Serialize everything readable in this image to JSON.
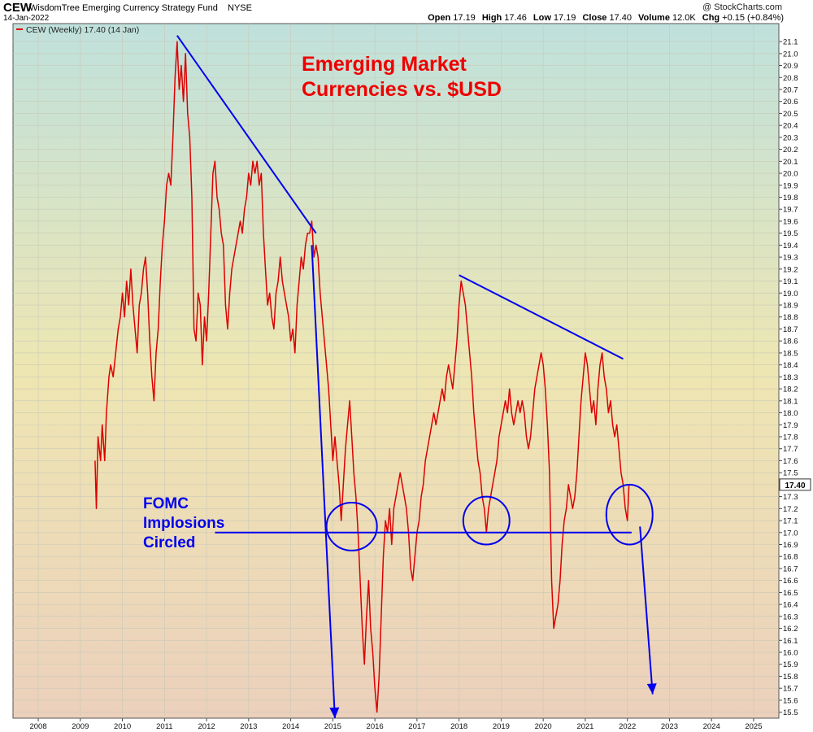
{
  "header": {
    "symbol": "CEW",
    "fund_name": "WisdomTree Emerging Currency Strategy Fund",
    "exchange": "NYSE",
    "date": "14-Jan-2022",
    "credit": "@ StockCharts.com",
    "ohlc": {
      "open_label": "Open",
      "open": "17.19",
      "high_label": "High",
      "high": "17.46",
      "low_label": "Low",
      "low": "17.19",
      "close_label": "Close",
      "close": "17.40",
      "volume_label": "Volume",
      "volume": "12.0K",
      "chg_label": "Chg",
      "chg": "+0.15 (+0.84%)"
    }
  },
  "colors": {
    "price_line": "#dd0000",
    "annotation": "#0000ee",
    "title_text": "#ee0000",
    "bg_top": "#bfe1dc",
    "bg_mid": "#eee6b2",
    "bg_bottom": "#ecd0bc"
  },
  "chart_data": {
    "type": "line",
    "title": "Emerging Market Currencies vs. $USD",
    "legend": {
      "label": "CEW (Weekly) 17.40 (14 Jan)",
      "placement": "top-left"
    },
    "last_value_label": "17.40",
    "y_axis": {
      "side": "right",
      "ylim": [
        15.45,
        21.25
      ],
      "ticks": [
        "15.5",
        "15.6",
        "15.7",
        "15.8",
        "15.9",
        "16.0",
        "16.1",
        "16.2",
        "16.3",
        "16.4",
        "16.5",
        "16.6",
        "16.7",
        "16.8",
        "16.9",
        "17.0",
        "17.1",
        "17.2",
        "17.3",
        "17.4",
        "17.5",
        "17.6",
        "17.7",
        "17.8",
        "17.9",
        "18.0",
        "18.1",
        "18.2",
        "18.3",
        "18.4",
        "18.5",
        "18.6",
        "18.7",
        "18.8",
        "18.9",
        "19.0",
        "19.1",
        "19.2",
        "19.3",
        "19.4",
        "19.5",
        "19.6",
        "19.7",
        "19.8",
        "19.9",
        "20.0",
        "20.1",
        "20.2",
        "20.3",
        "20.4",
        "20.5",
        "20.6",
        "20.7",
        "20.8",
        "20.9",
        "21.0",
        "21.1"
      ]
    },
    "x_axis": {
      "xlim": [
        2007.4,
        2025.6
      ],
      "ticks": [
        "2008",
        "2009",
        "2010",
        "2011",
        "2012",
        "2013",
        "2014",
        "2015",
        "2016",
        "2017",
        "2018",
        "2019",
        "2020",
        "2021",
        "2022",
        "2023",
        "2024",
        "2025"
      ]
    },
    "grid": "on",
    "series": [
      {
        "name": "CEW (Weekly)",
        "points": [
          [
            2009.35,
            17.6
          ],
          [
            2009.38,
            17.2
          ],
          [
            2009.42,
            17.8
          ],
          [
            2009.48,
            17.6
          ],
          [
            2009.52,
            17.9
          ],
          [
            2009.58,
            17.6
          ],
          [
            2009.62,
            18.0
          ],
          [
            2009.68,
            18.3
          ],
          [
            2009.72,
            18.4
          ],
          [
            2009.78,
            18.3
          ],
          [
            2009.84,
            18.5
          ],
          [
            2009.9,
            18.7
          ],
          [
            2009.95,
            18.8
          ],
          [
            2010.0,
            19.0
          ],
          [
            2010.05,
            18.8
          ],
          [
            2010.1,
            19.1
          ],
          [
            2010.15,
            18.9
          ],
          [
            2010.2,
            19.2
          ],
          [
            2010.25,
            18.9
          ],
          [
            2010.3,
            18.7
          ],
          [
            2010.35,
            18.5
          ],
          [
            2010.4,
            18.9
          ],
          [
            2010.45,
            19.0
          ],
          [
            2010.5,
            19.2
          ],
          [
            2010.55,
            19.3
          ],
          [
            2010.6,
            19.0
          ],
          [
            2010.65,
            18.6
          ],
          [
            2010.7,
            18.3
          ],
          [
            2010.75,
            18.1
          ],
          [
            2010.8,
            18.5
          ],
          [
            2010.85,
            18.7
          ],
          [
            2010.9,
            19.1
          ],
          [
            2010.95,
            19.4
          ],
          [
            2011.0,
            19.6
          ],
          [
            2011.05,
            19.9
          ],
          [
            2011.1,
            20.0
          ],
          [
            2011.15,
            19.9
          ],
          [
            2011.2,
            20.3
          ],
          [
            2011.25,
            20.8
          ],
          [
            2011.3,
            21.1
          ],
          [
            2011.35,
            20.7
          ],
          [
            2011.4,
            20.9
          ],
          [
            2011.45,
            20.6
          ],
          [
            2011.5,
            21.0
          ],
          [
            2011.55,
            20.5
          ],
          [
            2011.6,
            20.3
          ],
          [
            2011.65,
            19.8
          ],
          [
            2011.7,
            18.7
          ],
          [
            2011.75,
            18.6
          ],
          [
            2011.8,
            19.0
          ],
          [
            2011.85,
            18.9
          ],
          [
            2011.9,
            18.4
          ],
          [
            2011.95,
            18.8
          ],
          [
            2012.0,
            18.6
          ],
          [
            2012.05,
            19.0
          ],
          [
            2012.1,
            19.5
          ],
          [
            2012.15,
            20.0
          ],
          [
            2012.2,
            20.1
          ],
          [
            2012.25,
            19.8
          ],
          [
            2012.3,
            19.7
          ],
          [
            2012.35,
            19.5
          ],
          [
            2012.4,
            19.4
          ],
          [
            2012.45,
            18.9
          ],
          [
            2012.5,
            18.7
          ],
          [
            2012.55,
            19.0
          ],
          [
            2012.6,
            19.2
          ],
          [
            2012.65,
            19.3
          ],
          [
            2012.7,
            19.4
          ],
          [
            2012.75,
            19.5
          ],
          [
            2012.8,
            19.6
          ],
          [
            2012.85,
            19.5
          ],
          [
            2012.9,
            19.7
          ],
          [
            2012.95,
            19.8
          ],
          [
            2013.0,
            20.0
          ],
          [
            2013.05,
            19.9
          ],
          [
            2013.1,
            20.1
          ],
          [
            2013.15,
            20.0
          ],
          [
            2013.2,
            20.1
          ],
          [
            2013.25,
            19.9
          ],
          [
            2013.3,
            20.0
          ],
          [
            2013.35,
            19.5
          ],
          [
            2013.4,
            19.2
          ],
          [
            2013.45,
            18.9
          ],
          [
            2013.5,
            19.0
          ],
          [
            2013.55,
            18.8
          ],
          [
            2013.6,
            18.7
          ],
          [
            2013.65,
            19.0
          ],
          [
            2013.7,
            19.1
          ],
          [
            2013.75,
            19.3
          ],
          [
            2013.8,
            19.1
          ],
          [
            2013.85,
            19.0
          ],
          [
            2013.9,
            18.9
          ],
          [
            2013.95,
            18.8
          ],
          [
            2014.0,
            18.6
          ],
          [
            2014.05,
            18.7
          ],
          [
            2014.1,
            18.5
          ],
          [
            2014.15,
            18.9
          ],
          [
            2014.2,
            19.1
          ],
          [
            2014.25,
            19.3
          ],
          [
            2014.3,
            19.2
          ],
          [
            2014.35,
            19.4
          ],
          [
            2014.4,
            19.5
          ],
          [
            2014.45,
            19.5
          ],
          [
            2014.5,
            19.6
          ],
          [
            2014.55,
            19.3
          ],
          [
            2014.6,
            19.4
          ],
          [
            2014.65,
            19.3
          ],
          [
            2014.7,
            19.0
          ],
          [
            2014.75,
            18.8
          ],
          [
            2014.8,
            18.6
          ],
          [
            2014.85,
            18.4
          ],
          [
            2014.9,
            18.2
          ],
          [
            2014.95,
            17.9
          ],
          [
            2015.0,
            17.6
          ],
          [
            2015.05,
            17.8
          ],
          [
            2015.1,
            17.6
          ],
          [
            2015.15,
            17.4
          ],
          [
            2015.2,
            17.1
          ],
          [
            2015.25,
            17.4
          ],
          [
            2015.3,
            17.7
          ],
          [
            2015.35,
            17.9
          ],
          [
            2015.4,
            18.1
          ],
          [
            2015.45,
            17.8
          ],
          [
            2015.5,
            17.5
          ],
          [
            2015.55,
            17.3
          ],
          [
            2015.6,
            17.0
          ],
          [
            2015.65,
            16.6
          ],
          [
            2015.7,
            16.2
          ],
          [
            2015.75,
            15.9
          ],
          [
            2015.8,
            16.3
          ],
          [
            2015.85,
            16.6
          ],
          [
            2015.9,
            16.2
          ],
          [
            2015.95,
            16.0
          ],
          [
            2016.0,
            15.7
          ],
          [
            2016.05,
            15.5
          ],
          [
            2016.1,
            15.8
          ],
          [
            2016.15,
            16.3
          ],
          [
            2016.2,
            16.8
          ],
          [
            2016.25,
            17.1
          ],
          [
            2016.3,
            17.0
          ],
          [
            2016.35,
            17.2
          ],
          [
            2016.4,
            16.9
          ],
          [
            2016.45,
            17.2
          ],
          [
            2016.5,
            17.3
          ],
          [
            2016.55,
            17.4
          ],
          [
            2016.6,
            17.5
          ],
          [
            2016.65,
            17.4
          ],
          [
            2016.7,
            17.3
          ],
          [
            2016.75,
            17.2
          ],
          [
            2016.8,
            17.0
          ],
          [
            2016.85,
            16.7
          ],
          [
            2016.9,
            16.6
          ],
          [
            2016.95,
            16.8
          ],
          [
            2017.0,
            17.0
          ],
          [
            2017.05,
            17.1
          ],
          [
            2017.1,
            17.3
          ],
          [
            2017.15,
            17.4
          ],
          [
            2017.2,
            17.6
          ],
          [
            2017.25,
            17.7
          ],
          [
            2017.3,
            17.8
          ],
          [
            2017.35,
            17.9
          ],
          [
            2017.4,
            18.0
          ],
          [
            2017.45,
            17.9
          ],
          [
            2017.5,
            18.0
          ],
          [
            2017.55,
            18.1
          ],
          [
            2017.6,
            18.2
          ],
          [
            2017.65,
            18.1
          ],
          [
            2017.7,
            18.3
          ],
          [
            2017.75,
            18.4
          ],
          [
            2017.8,
            18.3
          ],
          [
            2017.85,
            18.2
          ],
          [
            2017.9,
            18.4
          ],
          [
            2017.95,
            18.6
          ],
          [
            2018.0,
            18.9
          ],
          [
            2018.05,
            19.1
          ],
          [
            2018.1,
            19.0
          ],
          [
            2018.15,
            18.9
          ],
          [
            2018.2,
            18.7
          ],
          [
            2018.25,
            18.5
          ],
          [
            2018.3,
            18.3
          ],
          [
            2018.35,
            18.0
          ],
          [
            2018.4,
            17.8
          ],
          [
            2018.45,
            17.6
          ],
          [
            2018.5,
            17.5
          ],
          [
            2018.55,
            17.3
          ],
          [
            2018.6,
            17.2
          ],
          [
            2018.65,
            17.0
          ],
          [
            2018.7,
            17.2
          ],
          [
            2018.75,
            17.3
          ],
          [
            2018.8,
            17.4
          ],
          [
            2018.85,
            17.5
          ],
          [
            2018.9,
            17.6
          ],
          [
            2018.95,
            17.8
          ],
          [
            2019.0,
            17.9
          ],
          [
            2019.05,
            18.0
          ],
          [
            2019.1,
            18.1
          ],
          [
            2019.15,
            18.0
          ],
          [
            2019.2,
            18.2
          ],
          [
            2019.25,
            18.0
          ],
          [
            2019.3,
            17.9
          ],
          [
            2019.35,
            18.0
          ],
          [
            2019.4,
            18.1
          ],
          [
            2019.45,
            18.0
          ],
          [
            2019.5,
            18.1
          ],
          [
            2019.55,
            18.0
          ],
          [
            2019.6,
            17.8
          ],
          [
            2019.65,
            17.7
          ],
          [
            2019.7,
            17.8
          ],
          [
            2019.75,
            18.0
          ],
          [
            2019.8,
            18.2
          ],
          [
            2019.85,
            18.3
          ],
          [
            2019.9,
            18.4
          ],
          [
            2019.95,
            18.5
          ],
          [
            2020.0,
            18.4
          ],
          [
            2020.05,
            18.2
          ],
          [
            2020.1,
            17.9
          ],
          [
            2020.15,
            17.5
          ],
          [
            2020.2,
            16.6
          ],
          [
            2020.25,
            16.2
          ],
          [
            2020.3,
            16.3
          ],
          [
            2020.35,
            16.4
          ],
          [
            2020.4,
            16.6
          ],
          [
            2020.45,
            16.9
          ],
          [
            2020.5,
            17.1
          ],
          [
            2020.55,
            17.2
          ],
          [
            2020.6,
            17.4
          ],
          [
            2020.65,
            17.3
          ],
          [
            2020.7,
            17.2
          ],
          [
            2020.75,
            17.3
          ],
          [
            2020.8,
            17.5
          ],
          [
            2020.85,
            17.8
          ],
          [
            2020.9,
            18.1
          ],
          [
            2020.95,
            18.3
          ],
          [
            2021.0,
            18.5
          ],
          [
            2021.05,
            18.4
          ],
          [
            2021.1,
            18.2
          ],
          [
            2021.15,
            18.0
          ],
          [
            2021.2,
            18.1
          ],
          [
            2021.25,
            17.9
          ],
          [
            2021.3,
            18.2
          ],
          [
            2021.35,
            18.4
          ],
          [
            2021.4,
            18.5
          ],
          [
            2021.45,
            18.3
          ],
          [
            2021.5,
            18.2
          ],
          [
            2021.55,
            18.0
          ],
          [
            2021.6,
            18.1
          ],
          [
            2021.65,
            17.9
          ],
          [
            2021.7,
            17.8
          ],
          [
            2021.75,
            17.9
          ],
          [
            2021.8,
            17.7
          ],
          [
            2021.85,
            17.5
          ],
          [
            2021.9,
            17.4
          ],
          [
            2021.95,
            17.2
          ],
          [
            2022.0,
            17.1
          ],
          [
            2022.04,
            17.4
          ]
        ]
      }
    ],
    "annotations": {
      "headline": [
        "Emerging Market",
        "Currencies vs. $USD"
      ],
      "fomc_label": [
        "FOMC",
        "Implosions",
        "Circled"
      ],
      "support_level": 17.0,
      "trendlines": [
        {
          "from": [
            2011.3,
            21.15
          ],
          "to": [
            2014.6,
            19.5
          ]
        },
        {
          "from": [
            2018.0,
            19.15
          ],
          "to": [
            2021.9,
            18.45
          ]
        }
      ],
      "arrows": [
        {
          "from": [
            2014.5,
            19.4
          ],
          "to": [
            2015.05,
            15.45
          ]
        },
        {
          "from": [
            2022.3,
            17.05
          ],
          "to": [
            2022.6,
            15.65
          ]
        }
      ],
      "circles": [
        {
          "center": [
            2015.45,
            17.05
          ],
          "radius_x_years": 0.6,
          "radius_y_value": 0.2
        },
        {
          "center": [
            2018.65,
            17.1
          ],
          "radius_x_years": 0.55,
          "radius_y_value": 0.2
        },
        {
          "center": [
            2022.05,
            17.15
          ],
          "radius_x_years": 0.55,
          "radius_y_value": 0.25
        }
      ]
    }
  }
}
